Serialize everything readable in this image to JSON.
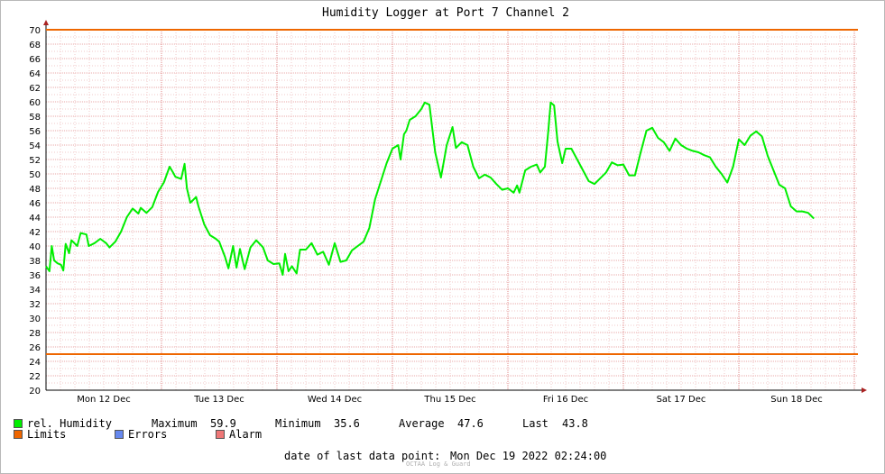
{
  "chart_data": {
    "type": "line",
    "title": "Humidity Logger at Port 7 Channel 2",
    "ylim": [
      20,
      70
    ],
    "yticks": [
      20,
      22,
      24,
      26,
      28,
      30,
      32,
      34,
      36,
      38,
      40,
      42,
      44,
      46,
      48,
      50,
      52,
      54,
      56,
      58,
      60,
      62,
      64,
      66,
      68,
      70
    ],
    "x_range_days": [
      0,
      7.1
    ],
    "day_labels": [
      {
        "day": 0.5,
        "label": "Mon 12 Dec"
      },
      {
        "day": 1.5,
        "label": "Tue 13 Dec"
      },
      {
        "day": 2.5,
        "label": "Wed 14 Dec"
      },
      {
        "day": 3.5,
        "label": "Thu 15 Dec"
      },
      {
        "day": 4.5,
        "label": "Fri 16 Dec"
      },
      {
        "day": 5.5,
        "label": "Sat 17 Dec"
      },
      {
        "day": 6.5,
        "label": "Sun 18 Dec"
      }
    ],
    "grid": true,
    "series": [
      {
        "name": "rel. Humidity",
        "color": "#00ee00",
        "points": [
          [
            0.0,
            37.2
          ],
          [
            0.03,
            36.5
          ],
          [
            0.05,
            40.0
          ],
          [
            0.07,
            38.0
          ],
          [
            0.1,
            37.6
          ],
          [
            0.13,
            37.4
          ],
          [
            0.15,
            36.6
          ],
          [
            0.17,
            40.3
          ],
          [
            0.2,
            39.0
          ],
          [
            0.22,
            40.8
          ],
          [
            0.27,
            40.0
          ],
          [
            0.3,
            41.8
          ],
          [
            0.35,
            41.6
          ],
          [
            0.37,
            40.0
          ],
          [
            0.42,
            40.4
          ],
          [
            0.47,
            41.0
          ],
          [
            0.52,
            40.4
          ],
          [
            0.55,
            39.8
          ],
          [
            0.6,
            40.6
          ],
          [
            0.65,
            42.0
          ],
          [
            0.7,
            44.0
          ],
          [
            0.75,
            45.2
          ],
          [
            0.8,
            44.5
          ],
          [
            0.82,
            45.3
          ],
          [
            0.87,
            44.6
          ],
          [
            0.92,
            45.4
          ],
          [
            0.97,
            47.5
          ],
          [
            1.02,
            48.8
          ],
          [
            1.07,
            51.0
          ],
          [
            1.1,
            50.2
          ],
          [
            1.12,
            49.6
          ],
          [
            1.17,
            49.3
          ],
          [
            1.2,
            51.4
          ],
          [
            1.22,
            48.0
          ],
          [
            1.25,
            46.0
          ],
          [
            1.3,
            46.8
          ],
          [
            1.32,
            45.5
          ],
          [
            1.37,
            43.0
          ],
          [
            1.42,
            41.5
          ],
          [
            1.47,
            41.0
          ],
          [
            1.5,
            40.6
          ],
          [
            1.55,
            38.5
          ],
          [
            1.58,
            36.9
          ],
          [
            1.62,
            40.0
          ],
          [
            1.65,
            37.0
          ],
          [
            1.68,
            39.6
          ],
          [
            1.72,
            36.8
          ],
          [
            1.77,
            39.8
          ],
          [
            1.82,
            40.8
          ],
          [
            1.88,
            39.8
          ],
          [
            1.92,
            38.0
          ],
          [
            1.97,
            37.5
          ],
          [
            2.02,
            37.6
          ],
          [
            2.05,
            36.0
          ],
          [
            2.07,
            38.9
          ],
          [
            2.1,
            36.5
          ],
          [
            2.13,
            37.2
          ],
          [
            2.17,
            36.2
          ],
          [
            2.2,
            39.5
          ],
          [
            2.25,
            39.5
          ],
          [
            2.3,
            40.4
          ],
          [
            2.35,
            38.8
          ],
          [
            2.4,
            39.2
          ],
          [
            2.45,
            37.4
          ],
          [
            2.5,
            40.4
          ],
          [
            2.55,
            37.8
          ],
          [
            2.6,
            38.0
          ],
          [
            2.65,
            39.4
          ],
          [
            2.7,
            40.0
          ],
          [
            2.75,
            40.6
          ],
          [
            2.8,
            42.5
          ],
          [
            2.85,
            46.5
          ],
          [
            2.9,
            49.0
          ],
          [
            2.95,
            51.5
          ],
          [
            3.0,
            53.5
          ],
          [
            3.05,
            54.0
          ],
          [
            3.07,
            52.0
          ],
          [
            3.1,
            55.5
          ],
          [
            3.12,
            56.0
          ],
          [
            3.15,
            57.5
          ],
          [
            3.2,
            58.0
          ],
          [
            3.25,
            59.0
          ],
          [
            3.28,
            59.9
          ],
          [
            3.32,
            59.6
          ],
          [
            3.37,
            53.0
          ],
          [
            3.42,
            49.5
          ],
          [
            3.47,
            54.0
          ],
          [
            3.52,
            56.5
          ],
          [
            3.55,
            53.6
          ],
          [
            3.6,
            54.4
          ],
          [
            3.65,
            54.0
          ],
          [
            3.7,
            51.0
          ],
          [
            3.75,
            49.4
          ],
          [
            3.8,
            49.9
          ],
          [
            3.85,
            49.5
          ],
          [
            3.9,
            48.6
          ],
          [
            3.95,
            47.8
          ],
          [
            4.0,
            48.0
          ],
          [
            4.05,
            47.4
          ],
          [
            4.08,
            48.4
          ],
          [
            4.1,
            47.4
          ],
          [
            4.15,
            50.5
          ],
          [
            4.2,
            51.0
          ],
          [
            4.25,
            51.3
          ],
          [
            4.28,
            50.2
          ],
          [
            4.32,
            51.0
          ],
          [
            4.35,
            56.0
          ],
          [
            4.37,
            59.9
          ],
          [
            4.4,
            59.5
          ],
          [
            4.43,
            54.5
          ],
          [
            4.47,
            51.5
          ],
          [
            4.5,
            53.5
          ],
          [
            4.55,
            53.5
          ],
          [
            4.6,
            52.0
          ],
          [
            4.65,
            50.5
          ],
          [
            4.7,
            49.0
          ],
          [
            4.75,
            48.6
          ],
          [
            4.8,
            49.4
          ],
          [
            4.85,
            50.2
          ],
          [
            4.9,
            51.6
          ],
          [
            4.95,
            51.2
          ],
          [
            5.0,
            51.3
          ],
          [
            5.05,
            49.8
          ],
          [
            5.1,
            49.8
          ],
          [
            5.15,
            53.0
          ],
          [
            5.2,
            56.0
          ],
          [
            5.25,
            56.4
          ],
          [
            5.3,
            55.0
          ],
          [
            5.35,
            54.4
          ],
          [
            5.4,
            53.2
          ],
          [
            5.45,
            54.9
          ],
          [
            5.5,
            54.0
          ],
          [
            5.55,
            53.5
          ],
          [
            5.6,
            53.2
          ],
          [
            5.65,
            53.0
          ],
          [
            5.7,
            52.6
          ],
          [
            5.75,
            52.3
          ],
          [
            5.8,
            51.0
          ],
          [
            5.85,
            50.0
          ],
          [
            5.9,
            48.8
          ],
          [
            5.95,
            51.0
          ],
          [
            6.0,
            54.8
          ],
          [
            6.05,
            54.0
          ],
          [
            6.1,
            55.3
          ],
          [
            6.15,
            55.9
          ],
          [
            6.2,
            55.2
          ],
          [
            6.25,
            52.5
          ],
          [
            6.3,
            50.5
          ],
          [
            6.35,
            48.5
          ],
          [
            6.4,
            48.0
          ],
          [
            6.45,
            45.5
          ],
          [
            6.5,
            44.8
          ],
          [
            6.55,
            44.8
          ],
          [
            6.6,
            44.6
          ],
          [
            6.65,
            43.8
          ]
        ]
      },
      {
        "name": "Limits",
        "color": "#ee6600",
        "values": [
          70,
          25
        ]
      }
    ]
  },
  "legend": {
    "humidity_label": "rel. Humidity",
    "humidity_color": "#00ee00",
    "limits_label": "Limits",
    "limits_color": "#ee6600",
    "errors_label": "Errors",
    "errors_color": "#6688ee",
    "alarm_label": "Alarm",
    "alarm_color": "#ee7777"
  },
  "stats": {
    "maximum_label": "Maximum",
    "maximum_value": "59.9",
    "minimum_label": "Minimum",
    "minimum_value": "35.6",
    "average_label": "Average",
    "average_value": "47.6",
    "last_label": "Last",
    "last_value": "43.8"
  },
  "last_point": {
    "label": "date of last data point:",
    "value": "Mon Dec 19 2022 02:24:00"
  },
  "brand": "OCTAA Log & Guard"
}
